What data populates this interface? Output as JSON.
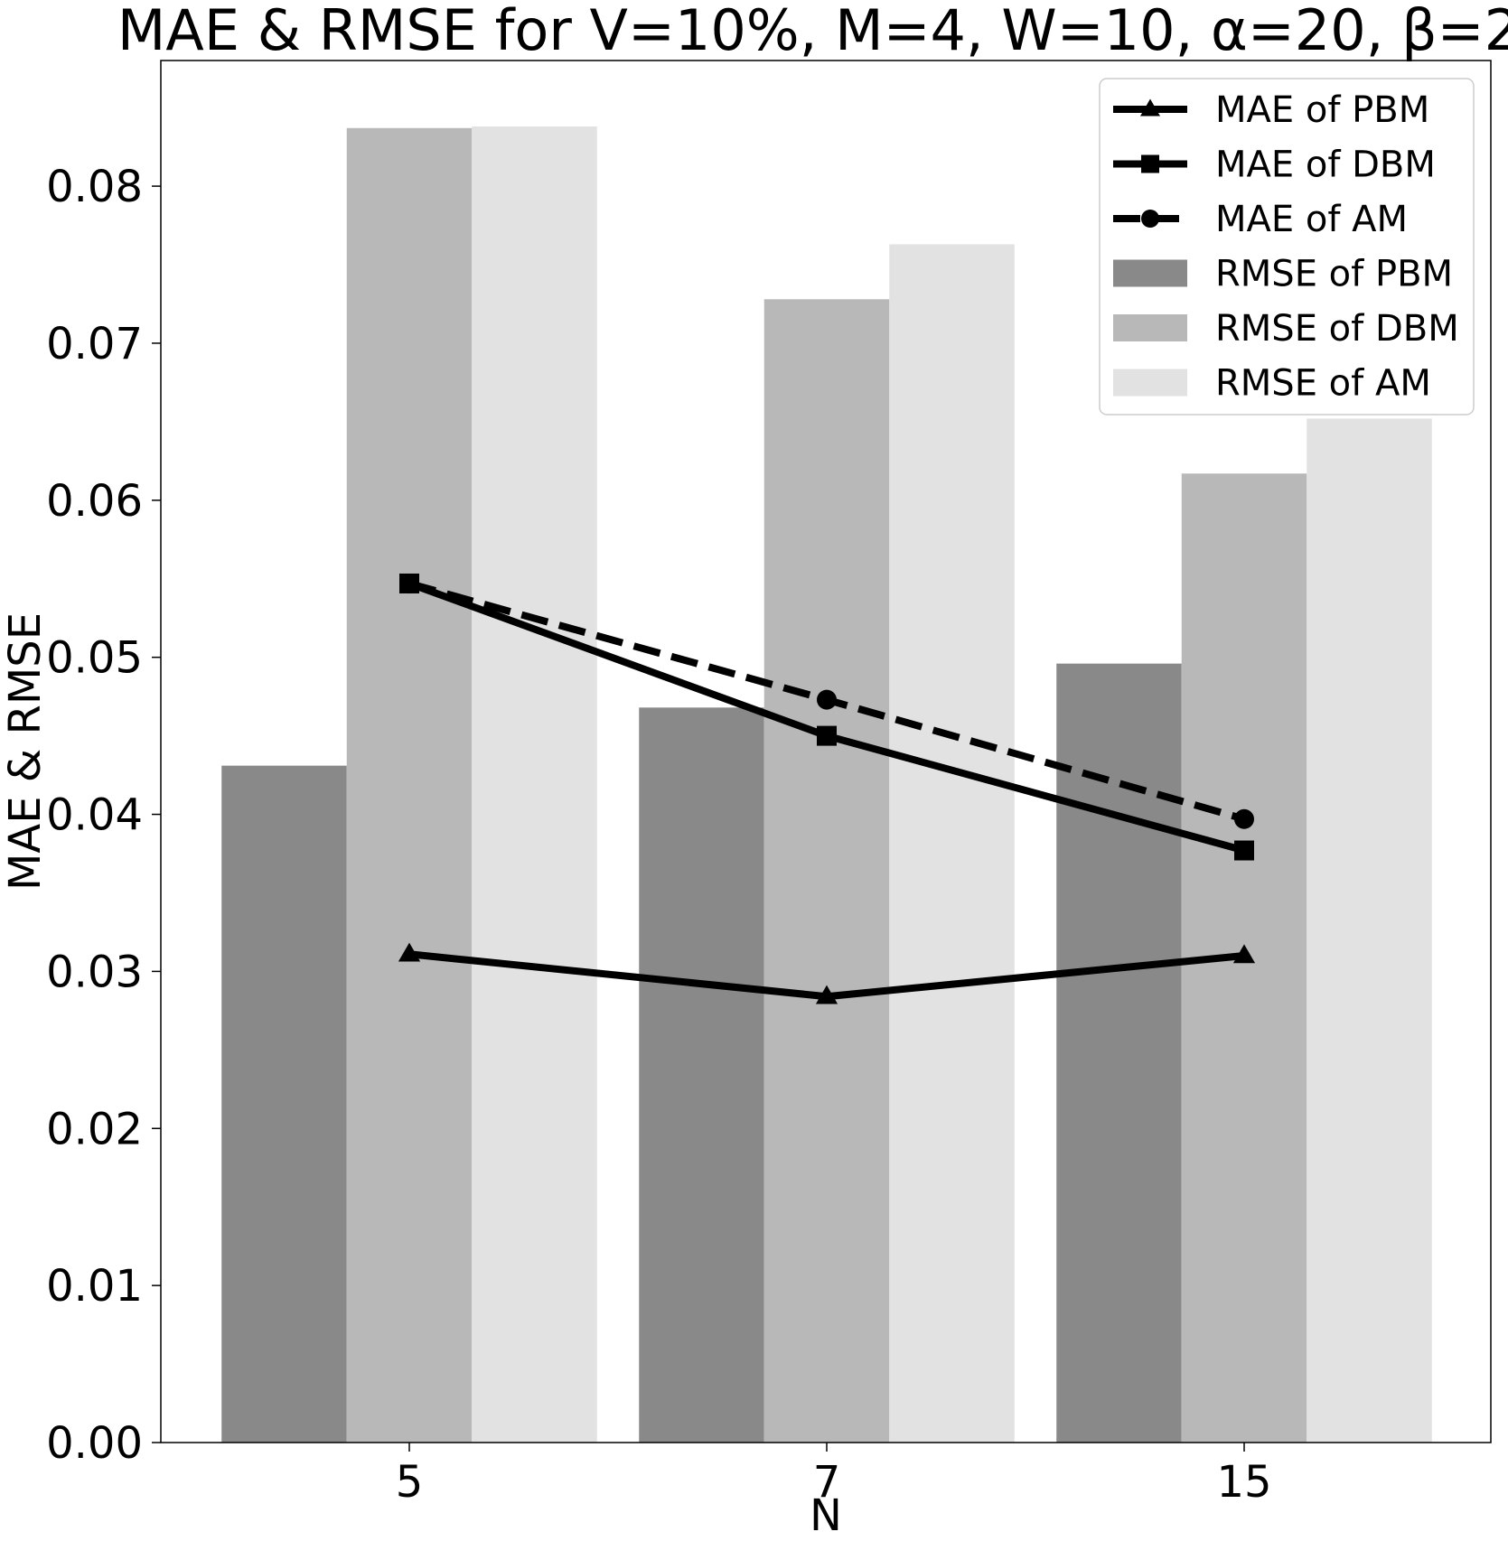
{
  "chart_data": {
    "type": "bar",
    "title": "MAE & RMSE for V=10%, M=4, W=10, α=20, β=2",
    "xlabel": "N",
    "ylabel": "MAE & RMSE",
    "categories": [
      "5",
      "7",
      "15"
    ],
    "ylim": [
      0,
      0.088
    ],
    "yticks": [
      0.0,
      0.01,
      0.02,
      0.03,
      0.04,
      0.05,
      0.06,
      0.07,
      0.08
    ],
    "ytick_labels": [
      "0.00",
      "0.01",
      "0.02",
      "0.03",
      "0.04",
      "0.05",
      "0.06",
      "0.07",
      "0.08"
    ],
    "grid": false,
    "legend_position": "top-right",
    "bar_series": [
      {
        "name": "RMSE of PBM",
        "color": "#898989",
        "values": [
          0.0431,
          0.0468,
          0.0496
        ]
      },
      {
        "name": "RMSE of DBM",
        "color": "#b8b8b8",
        "values": [
          0.0837,
          0.0728,
          0.0617
        ]
      },
      {
        "name": "RMSE of AM",
        "color": "#e2e2e2",
        "values": [
          0.0838,
          0.0763,
          0.0652
        ]
      }
    ],
    "line_series": [
      {
        "name": "MAE of PBM",
        "color": "#000000",
        "marker": "triangle",
        "dashed": false,
        "values": [
          0.0311,
          0.0284,
          0.031
        ]
      },
      {
        "name": "MAE of DBM",
        "color": "#000000",
        "marker": "square",
        "dashed": false,
        "values": [
          0.0547,
          0.045,
          0.0377
        ]
      },
      {
        "name": "MAE of AM",
        "color": "#000000",
        "marker": "circle",
        "dashed": true,
        "values": [
          0.0547,
          0.0473,
          0.0397
        ]
      }
    ],
    "legend_order": [
      "MAE of PBM",
      "MAE of DBM",
      "MAE of AM",
      "RMSE of PBM",
      "RMSE of DBM",
      "RMSE of AM"
    ]
  }
}
